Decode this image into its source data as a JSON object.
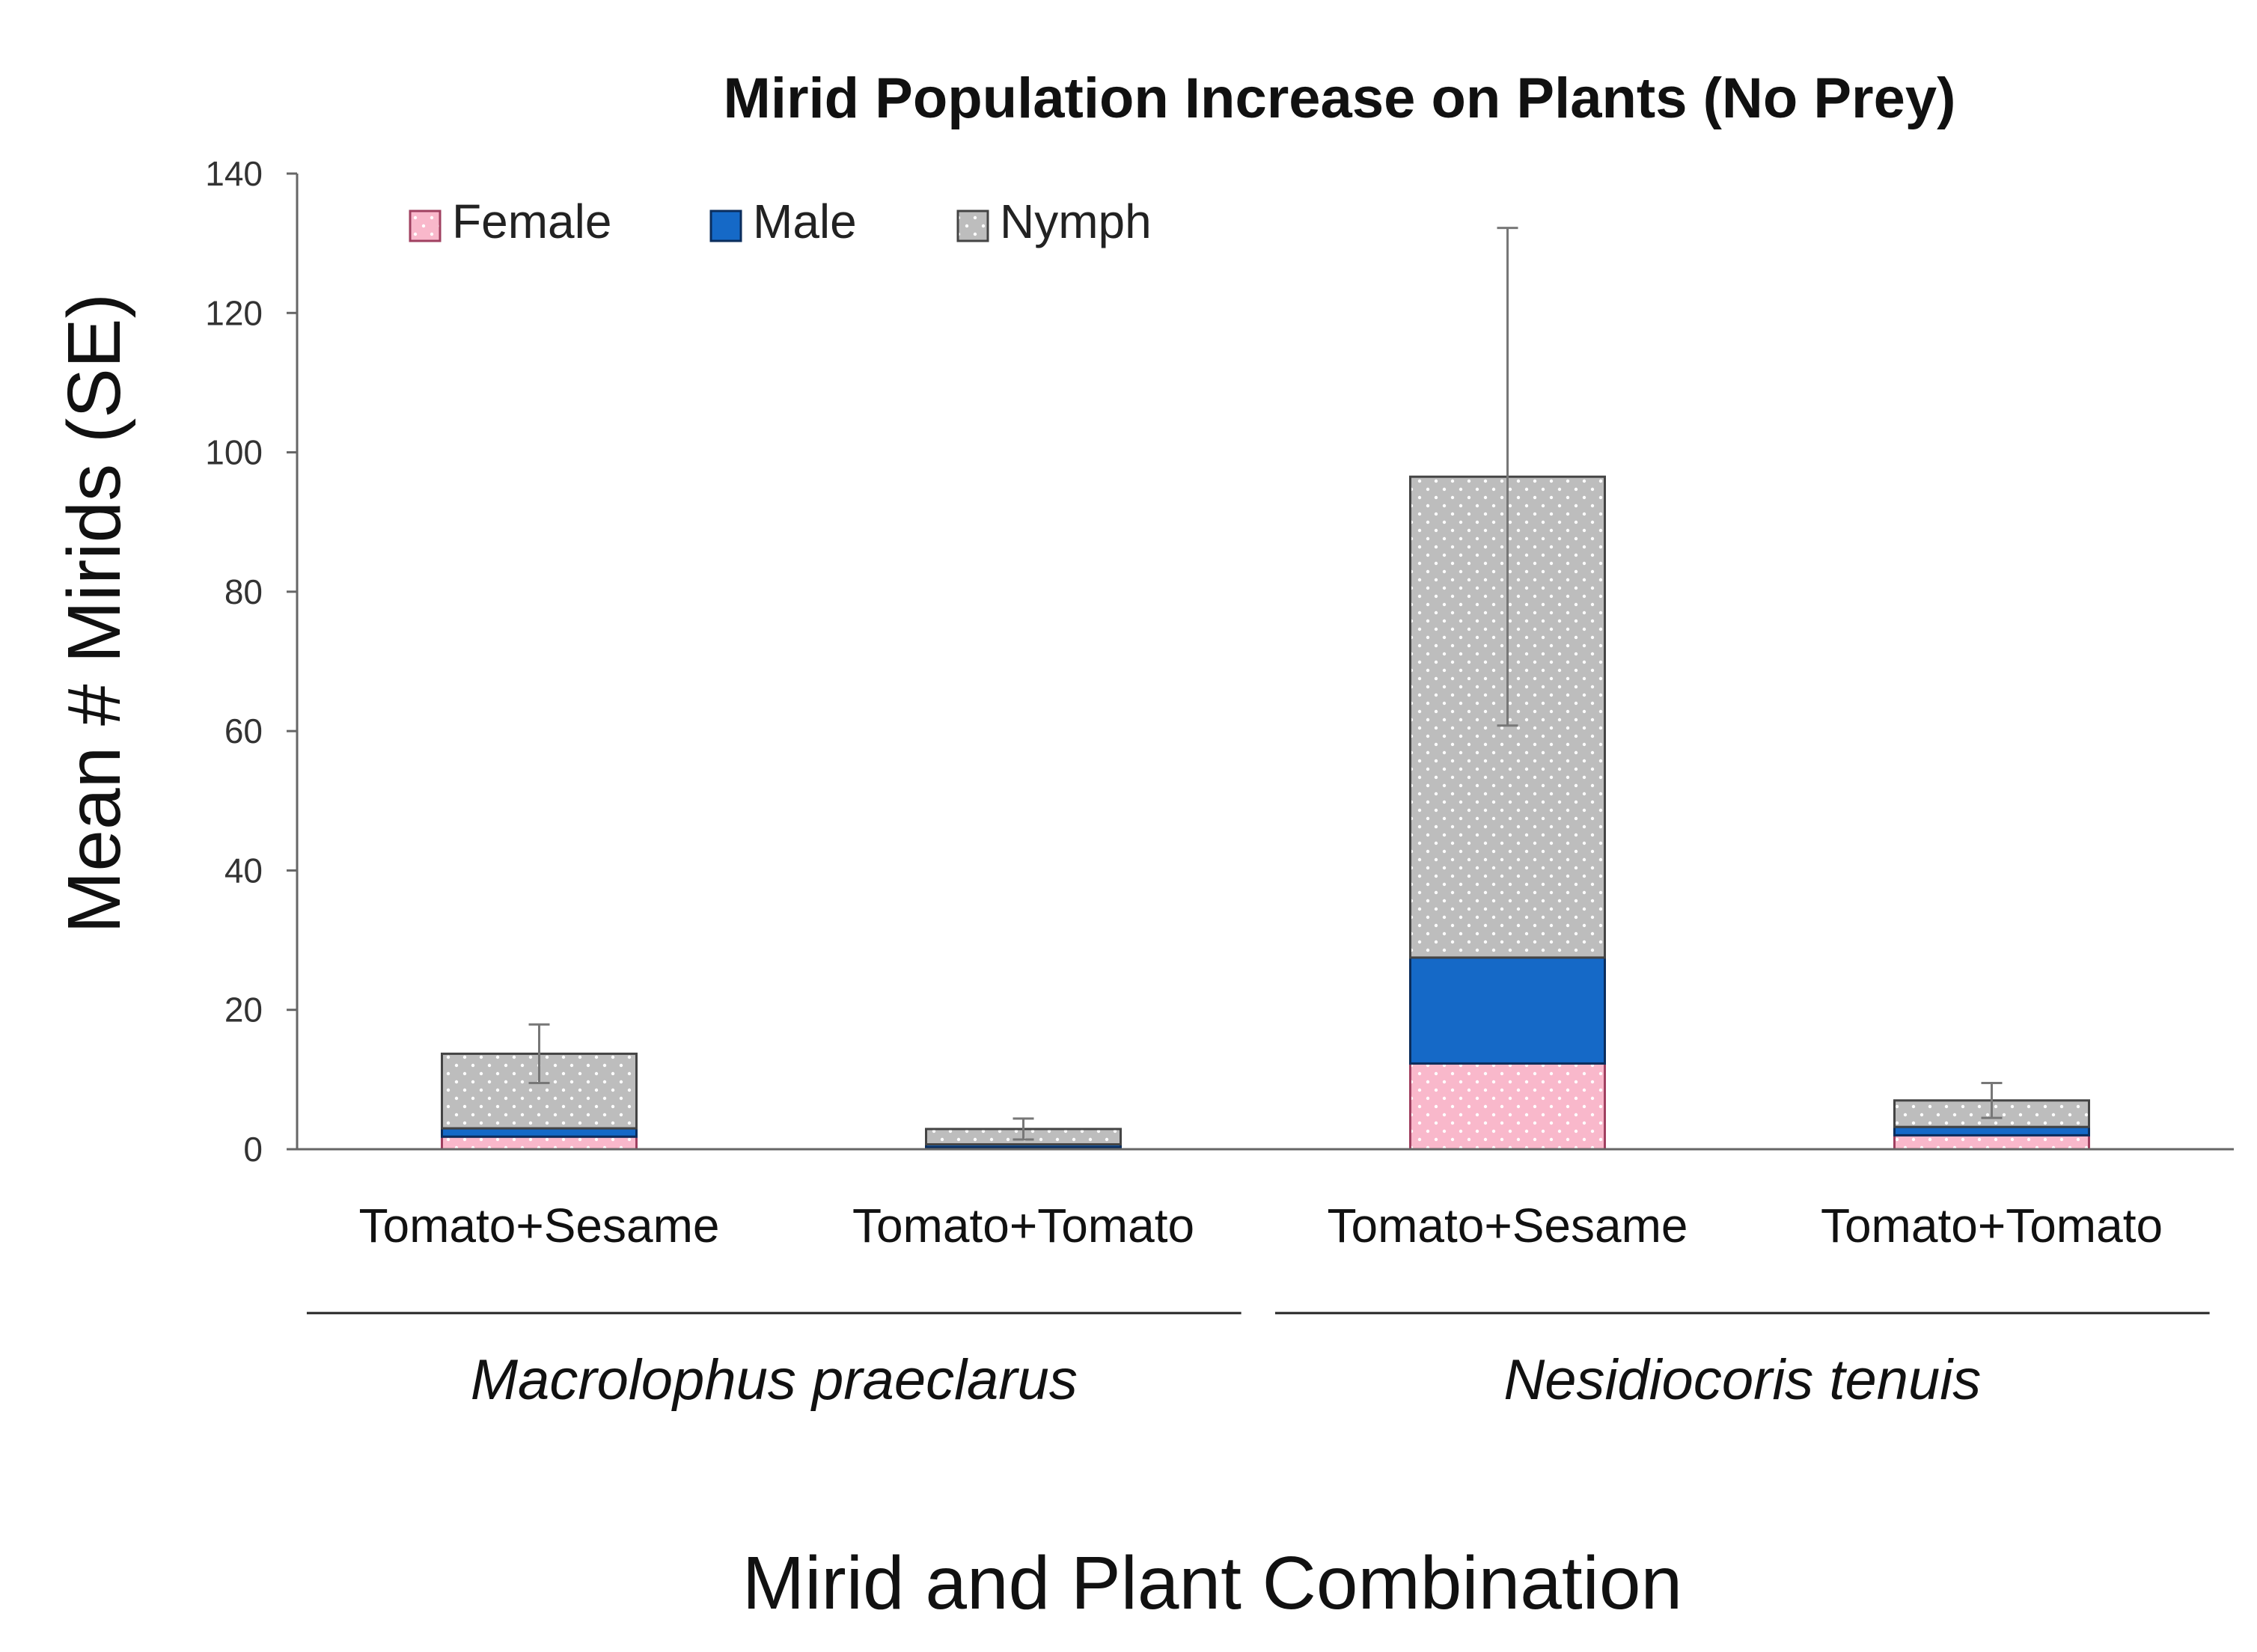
{
  "chart_data": {
    "type": "bar",
    "stacked": true,
    "title": "Mirid Population Increase on Plants (No Prey)",
    "ylabel": "Mean # Mirids (SE)",
    "xlabel": "Mirid and Plant Combination",
    "ylim": [
      0,
      140
    ],
    "yticks": [
      0,
      20,
      40,
      60,
      80,
      100,
      120,
      140
    ],
    "grid": false,
    "legend_position": "top-left",
    "categories": [
      "Tomato+Sesame",
      "Tomato+Tomato",
      "Tomato+Sesame",
      "Tomato+Tomato"
    ],
    "groups": [
      {
        "label": "Macrolophus praeclarus",
        "category_indices": [
          0,
          1
        ]
      },
      {
        "label": "Nesidiocoris tenuis",
        "category_indices": [
          2,
          3
        ]
      }
    ],
    "series": [
      {
        "name": "Female",
        "color": "#F9B8CB",
        "pattern": "dotted",
        "values": [
          1.8,
          0.3,
          12.3,
          2.0
        ]
      },
      {
        "name": "Male",
        "color": "#1569C7",
        "pattern": "solid",
        "values": [
          1.2,
          0.4,
          15.2,
          1.2
        ]
      },
      {
        "name": "Nymph",
        "color": "#BDBDBD",
        "pattern": "dotted",
        "values": [
          10.7,
          2.2,
          69.0,
          3.8
        ]
      }
    ],
    "error_bars": [
      {
        "center": 13.7,
        "low": 9.5,
        "high": 17.9
      },
      {
        "center": 2.9,
        "low": 1.4,
        "high": 4.4
      },
      {
        "center": 96.5,
        "low": 60.8,
        "high": 132.2
      },
      {
        "center": 7.0,
        "low": 4.5,
        "high": 9.5
      }
    ]
  }
}
